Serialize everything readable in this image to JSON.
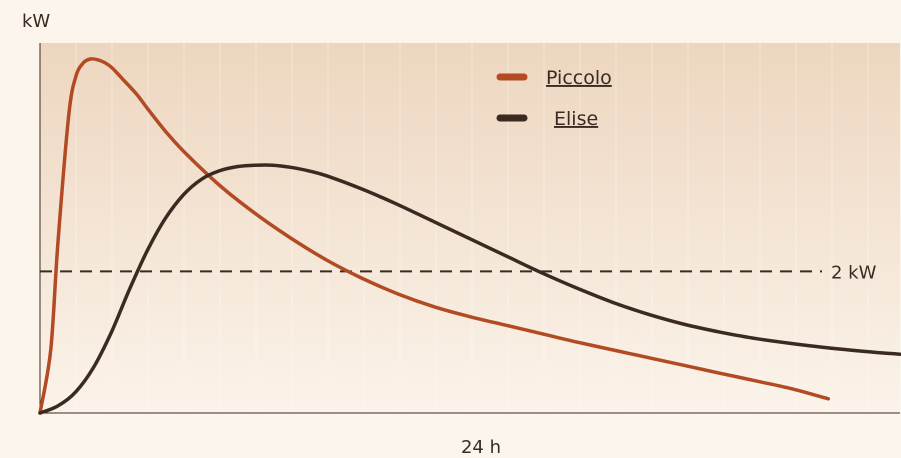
{
  "chart_data": {
    "type": "line",
    "ylabel": "kW",
    "xlabel": "24 h",
    "x_range": [
      0,
      24
    ],
    "y_range": [
      0,
      5
    ],
    "grid": true,
    "legend_position": "top-center",
    "reference_line": {
      "value": 2.0,
      "label": "2 kW",
      "style": "dashed",
      "color": "#3a2a22"
    },
    "series": [
      {
        "name": "Piccolo",
        "color": "#b24a24",
        "x": [
          0.0,
          0.3,
          0.5,
          0.8,
          1.0,
          1.2,
          1.4,
          1.6,
          1.8,
          2.0,
          2.3,
          2.7,
          3.0,
          3.5,
          4.0,
          5.0,
          6.0,
          7.0,
          8.0,
          9.0,
          10.0,
          11.0,
          12.0,
          13.0,
          14.0,
          15.0,
          16.0,
          17.0,
          18.0,
          19.0,
          20.0,
          21.0,
          22.0
        ],
        "y": [
          0.0,
          0.9,
          2.4,
          4.2,
          4.75,
          4.94,
          5.0,
          4.99,
          4.95,
          4.88,
          4.72,
          4.5,
          4.3,
          3.98,
          3.7,
          3.22,
          2.82,
          2.47,
          2.16,
          1.9,
          1.68,
          1.5,
          1.36,
          1.24,
          1.12,
          1.0,
          0.89,
          0.78,
          0.67,
          0.56,
          0.45,
          0.34,
          0.2
        ]
      },
      {
        "name": "Elise",
        "color": "#3a2a22",
        "x": [
          0.0,
          0.5,
          1.0,
          1.5,
          2.0,
          2.5,
          3.0,
          3.5,
          4.0,
          4.5,
          5.0,
          5.5,
          6.0,
          6.5,
          7.0,
          7.5,
          8.0,
          9.0,
          10.0,
          11.0,
          12.0,
          13.0,
          14.0,
          15.0,
          16.0,
          17.0,
          18.0,
          19.0,
          20.0,
          21.0,
          22.0,
          23.0,
          24.0
        ],
        "y": [
          0.0,
          0.1,
          0.3,
          0.65,
          1.15,
          1.75,
          2.3,
          2.75,
          3.08,
          3.3,
          3.42,
          3.48,
          3.5,
          3.5,
          3.47,
          3.42,
          3.35,
          3.16,
          2.94,
          2.7,
          2.46,
          2.22,
          1.98,
          1.76,
          1.56,
          1.39,
          1.25,
          1.14,
          1.05,
          0.98,
          0.92,
          0.87,
          0.83
        ]
      }
    ]
  }
}
